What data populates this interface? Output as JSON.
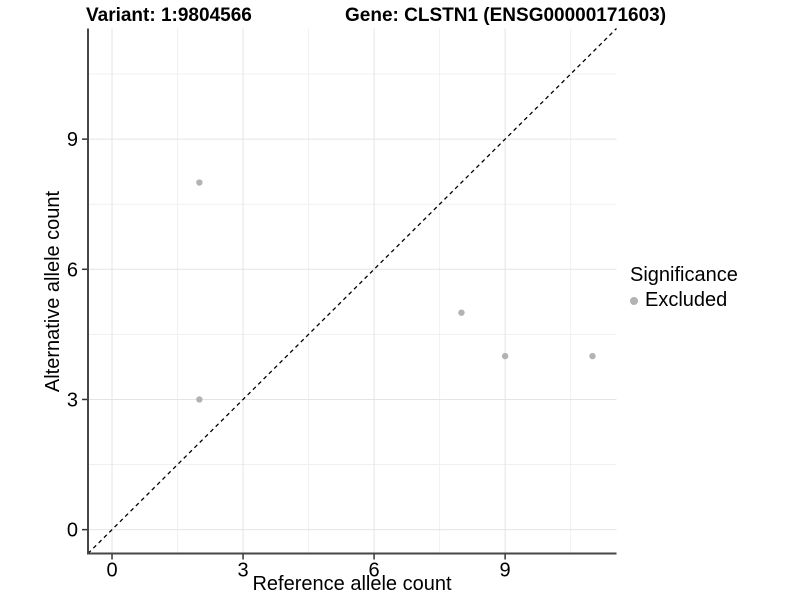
{
  "header": {
    "variant_title": "Variant: 1:9804566",
    "gene_title": "Gene: CLSTN1 (ENSG00000171603)"
  },
  "legend": {
    "title": "Significance",
    "items": [
      {
        "label": "Excluded",
        "marker": "circle-icon",
        "color": "#b3b3b3"
      }
    ],
    "position": "right"
  },
  "colors": {
    "background": "#ffffff",
    "major_grid": "#e4e4e4",
    "minor_grid": "#f0f0f0",
    "axis_line": "#464646",
    "tick_mark": "#333333",
    "identity_line": "#000000",
    "point": "#b3b3b3",
    "text": "#000000"
  },
  "chart_data": {
    "type": "scatter",
    "title": "Variant: 1:9804566   Gene: CLSTN1 (ENSG00000171603)",
    "xlabel": "Reference allele count",
    "ylabel": "Alternative allele count",
    "xlim": [
      -0.55,
      11.55
    ],
    "ylim": [
      -0.55,
      11.55
    ],
    "x_major_ticks": [
      0,
      3,
      6,
      9
    ],
    "y_major_ticks": [
      0,
      3,
      6,
      9
    ],
    "x_minor_ticks": [
      1.5,
      4.5,
      7.5,
      10.5
    ],
    "y_minor_ticks": [
      1.5,
      4.5,
      7.5,
      10.5
    ],
    "grid": true,
    "legend_position": "right",
    "identity_line": {
      "style": "dashed",
      "slope": 1,
      "intercept": 0
    },
    "series": [
      {
        "name": "Excluded",
        "color": "#b3b3b3",
        "points": [
          {
            "x": 2,
            "y": 8
          },
          {
            "x": 2,
            "y": 3
          },
          {
            "x": 8,
            "y": 5
          },
          {
            "x": 9,
            "y": 4
          },
          {
            "x": 11,
            "y": 4
          }
        ]
      }
    ]
  }
}
